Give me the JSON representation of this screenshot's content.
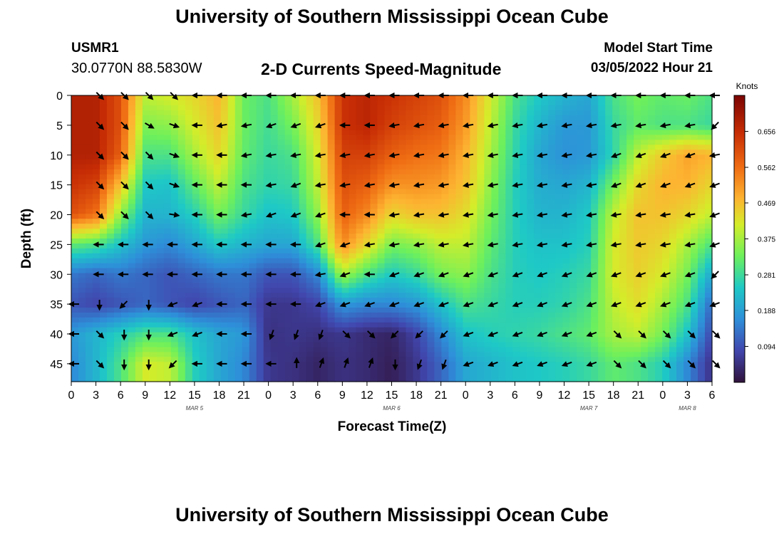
{
  "header": {
    "title": "University of Southern Mississippi Ocean Cube",
    "station_id": "USMR1",
    "station_coords": "30.0770N  88.5830W",
    "plot_title": "2-D Currents Speed-Magnitude",
    "model_start_label": "Model Start Time",
    "model_start_value": "03/05/2022 Hour 21"
  },
  "footer": {
    "title": "University of Southern Mississippi Ocean Cube"
  },
  "colors": {
    "scale": [
      "#30123b",
      "#4146ad",
      "#2e8fd9",
      "#1ec9c6",
      "#6df05c",
      "#d4ed2a",
      "#fdb431",
      "#ef6c13",
      "#c72d05",
      "#7a0403"
    ]
  },
  "chart_data": {
    "type": "heatmap",
    "xlabel": "Forecast Time(Z)",
    "ylabel": "Depth (ft)",
    "ylim": [
      48,
      0
    ],
    "x_tick_labels": [
      "0",
      "3",
      "6",
      "9",
      "12",
      "15",
      "18",
      "21",
      "0",
      "3",
      "6",
      "9",
      "12",
      "15",
      "18",
      "21",
      "0",
      "3",
      "6",
      "9",
      "12",
      "15",
      "18",
      "21",
      "0",
      "3",
      "6"
    ],
    "y_tick_labels": [
      "0",
      "5",
      "10",
      "15",
      "20",
      "25",
      "30",
      "35",
      "40",
      "45"
    ],
    "date_labels": [
      "MAR 5",
      "MAR 6",
      "MAR 7",
      "MAR 8"
    ],
    "colorbar": {
      "unit": "Knots",
      "range": [
        0.0,
        0.75
      ],
      "tick_labels": [
        "0.656",
        "0.562",
        "0.469",
        "0.375",
        "0.281",
        "0.188",
        "0.094"
      ],
      "tick_values": [
        0.656,
        0.562,
        0.469,
        0.375,
        0.281,
        0.188,
        0.094
      ]
    },
    "depths_ft": [
      0,
      5,
      10,
      15,
      20,
      25,
      30,
      35,
      40,
      45
    ],
    "hours": [
      0,
      3,
      6,
      9,
      12,
      15,
      18,
      21,
      24,
      27,
      30,
      33,
      36,
      39,
      42,
      45,
      48,
      51,
      54,
      57,
      60,
      63,
      66,
      69,
      72,
      75,
      78
    ],
    "speed_knots": [
      [
        0.69,
        0.69,
        0.62,
        0.4,
        0.42,
        0.45,
        0.5,
        0.33,
        0.3,
        0.38,
        0.48,
        0.66,
        0.68,
        0.66,
        0.64,
        0.62,
        0.55,
        0.42,
        0.3,
        0.25,
        0.22,
        0.2,
        0.3,
        0.34,
        0.32,
        0.33,
        0.3
      ],
      [
        0.69,
        0.69,
        0.62,
        0.35,
        0.36,
        0.42,
        0.48,
        0.33,
        0.29,
        0.34,
        0.45,
        0.66,
        0.68,
        0.64,
        0.62,
        0.6,
        0.53,
        0.4,
        0.28,
        0.22,
        0.18,
        0.18,
        0.28,
        0.32,
        0.3,
        0.3,
        0.28
      ],
      [
        0.69,
        0.69,
        0.6,
        0.3,
        0.3,
        0.38,
        0.45,
        0.32,
        0.28,
        0.3,
        0.42,
        0.64,
        0.64,
        0.6,
        0.58,
        0.57,
        0.5,
        0.38,
        0.27,
        0.2,
        0.17,
        0.18,
        0.27,
        0.4,
        0.47,
        0.52,
        0.5
      ],
      [
        0.66,
        0.64,
        0.48,
        0.25,
        0.24,
        0.32,
        0.4,
        0.3,
        0.27,
        0.28,
        0.4,
        0.62,
        0.6,
        0.54,
        0.54,
        0.53,
        0.48,
        0.36,
        0.26,
        0.21,
        0.2,
        0.22,
        0.34,
        0.45,
        0.5,
        0.5,
        0.45
      ],
      [
        0.62,
        0.58,
        0.36,
        0.22,
        0.22,
        0.26,
        0.34,
        0.28,
        0.24,
        0.25,
        0.36,
        0.6,
        0.55,
        0.45,
        0.48,
        0.48,
        0.44,
        0.34,
        0.26,
        0.22,
        0.22,
        0.25,
        0.4,
        0.48,
        0.48,
        0.45,
        0.4
      ],
      [
        0.32,
        0.3,
        0.24,
        0.18,
        0.16,
        0.2,
        0.25,
        0.22,
        0.2,
        0.2,
        0.3,
        0.55,
        0.45,
        0.34,
        0.36,
        0.4,
        0.4,
        0.32,
        0.26,
        0.24,
        0.24,
        0.26,
        0.42,
        0.47,
        0.45,
        0.38,
        0.3
      ],
      [
        0.14,
        0.12,
        0.14,
        0.12,
        0.1,
        0.12,
        0.14,
        0.14,
        0.1,
        0.1,
        0.16,
        0.38,
        0.3,
        0.25,
        0.28,
        0.34,
        0.36,
        0.3,
        0.26,
        0.25,
        0.26,
        0.28,
        0.42,
        0.46,
        0.42,
        0.34,
        0.2
      ],
      [
        0.1,
        0.08,
        0.1,
        0.12,
        0.1,
        0.08,
        0.1,
        0.12,
        0.06,
        0.06,
        0.08,
        0.18,
        0.16,
        0.16,
        0.18,
        0.24,
        0.3,
        0.28,
        0.26,
        0.26,
        0.27,
        0.3,
        0.4,
        0.44,
        0.38,
        0.3,
        0.12
      ],
      [
        0.18,
        0.22,
        0.26,
        0.3,
        0.3,
        0.24,
        0.2,
        0.18,
        0.05,
        0.06,
        0.05,
        0.06,
        0.04,
        0.03,
        0.08,
        0.16,
        0.24,
        0.26,
        0.27,
        0.28,
        0.3,
        0.32,
        0.38,
        0.4,
        0.34,
        0.24,
        0.08
      ],
      [
        0.16,
        0.22,
        0.3,
        0.42,
        0.4,
        0.26,
        0.2,
        0.16,
        0.06,
        0.05,
        0.03,
        0.05,
        0.04,
        0.02,
        0.06,
        0.12,
        0.2,
        0.22,
        0.24,
        0.25,
        0.26,
        0.28,
        0.32,
        0.3,
        0.26,
        0.16,
        0.05
      ]
    ],
    "arrow_angle_deg": [
      [
        null,
        315,
        315,
        315,
        315,
        180,
        180,
        180,
        180,
        180,
        180,
        180,
        180,
        180,
        180,
        180,
        180,
        180,
        180,
        180,
        180,
        180,
        180,
        180,
        180,
        180,
        180
      ],
      [
        null,
        315,
        315,
        330,
        340,
        180,
        190,
        190,
        200,
        200,
        200,
        180,
        180,
        190,
        190,
        190,
        190,
        190,
        190,
        190,
        190,
        190,
        190,
        190,
        190,
        190,
        225
      ],
      [
        null,
        315,
        315,
        315,
        340,
        180,
        180,
        190,
        190,
        190,
        190,
        190,
        190,
        190,
        190,
        190,
        190,
        190,
        190,
        190,
        190,
        190,
        200,
        200,
        200,
        200,
        190
      ],
      [
        null,
        315,
        315,
        315,
        340,
        180,
        180,
        180,
        190,
        200,
        190,
        190,
        190,
        190,
        190,
        190,
        190,
        190,
        190,
        190,
        190,
        190,
        200,
        200,
        200,
        200,
        200
      ],
      [
        null,
        315,
        315,
        315,
        350,
        180,
        180,
        190,
        200,
        200,
        200,
        180,
        180,
        190,
        190,
        190,
        190,
        190,
        190,
        190,
        190,
        190,
        190,
        190,
        190,
        190,
        200
      ],
      [
        null,
        180,
        180,
        180,
        180,
        180,
        180,
        180,
        180,
        180,
        200,
        200,
        190,
        190,
        190,
        190,
        190,
        190,
        190,
        190,
        190,
        190,
        190,
        190,
        190,
        190,
        200
      ],
      [
        null,
        180,
        180,
        180,
        180,
        180,
        180,
        180,
        180,
        180,
        190,
        200,
        180,
        200,
        200,
        200,
        200,
        200,
        200,
        200,
        200,
        200,
        200,
        200,
        200,
        200,
        225
      ],
      [
        180,
        270,
        225,
        270,
        200,
        200,
        180,
        180,
        180,
        180,
        200,
        200,
        200,
        200,
        200,
        200,
        200,
        200,
        200,
        200,
        200,
        200,
        200,
        200,
        200,
        200,
        200
      ],
      [
        180,
        315,
        270,
        270,
        200,
        200,
        180,
        180,
        250,
        250,
        250,
        315,
        315,
        225,
        225,
        225,
        200,
        200,
        200,
        200,
        200,
        200,
        315,
        315,
        315,
        315,
        315
      ],
      [
        180,
        315,
        270,
        270,
        225,
        180,
        180,
        180,
        180,
        90,
        70,
        70,
        70,
        270,
        250,
        250,
        200,
        200,
        200,
        200,
        200,
        200,
        315,
        315,
        315,
        315,
        315
      ]
    ]
  }
}
